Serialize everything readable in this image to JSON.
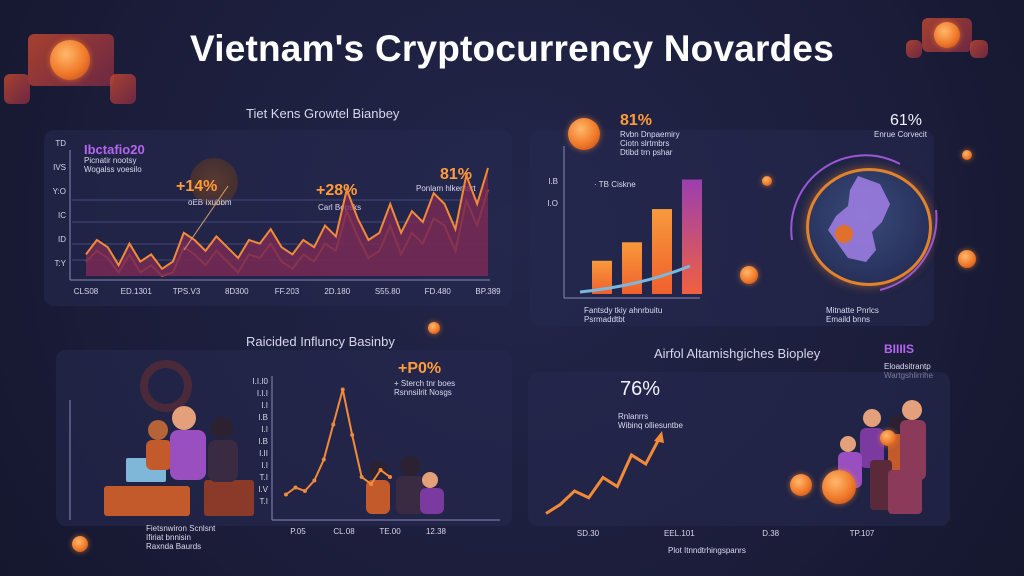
{
  "title": "Vietnam's Cryptocurrency Novardes",
  "colors": {
    "background": "#1b1d3b",
    "accent_orange": "#f28a38",
    "accent_purple": "#9b57d6"
  },
  "panel1": {
    "title": "Tiet Kens Growtel Bianbey",
    "legend_title": "Ibctafio20",
    "legend_sub": "Picnatir nootsy\nWogalss voesilo",
    "callouts": [
      {
        "value": "+14%",
        "label": "oEB Ixubbm"
      },
      {
        "value": "+28%",
        "label": "Carl Bopsks"
      },
      {
        "value": "81%",
        "label": "Ponlam hlkentsrt"
      }
    ]
  },
  "panel2": {
    "legend_value": "81%",
    "legend_text": "Rvbn Dnpaemiry\nCiotn slrtmbrs\nDtibd trn pshar",
    "bar_label": "· TB Ciskne",
    "caption": "Fantsdy tkiy ahnrbuitu\nPsrmaddtbt",
    "map_value": "61%",
    "map_label": "Enrue Corvecit",
    "map_caption": "Mitnatte Pnrlcs\nEmaild bnns"
  },
  "panel3": {
    "title": "Raicided Influncy Basinby",
    "callout_value": "+P0%",
    "callout_text": "+ Sterch tnr boes\nRsnnsilrit Nosgs",
    "caption": "Fietsnwiron Scnlsnt\nIfiriat bnnisin\nRaxnda Baurds"
  },
  "panel4": {
    "title": "Airfol Altamishgiches Biopley",
    "corner_label": "BIIIIS",
    "corner_text": "Eloadsitrantp\nWartgshlirrihe",
    "value": "76%",
    "sub": "Rnlanrrs\nWibinq olliesuntbe",
    "caption": "Plot Itnndtrhingspanrs"
  },
  "chart_data": [
    {
      "type": "line",
      "title": "Tiet Kens Growtel Bianbey",
      "x_tick_labels": [
        "CLS08",
        "ED.1301",
        "TPS.V3",
        "8D300",
        "FF.203",
        "2D.180",
        "S55.80",
        "FD.480",
        "BP.389"
      ],
      "y_tick_labels": [
        "TD",
        "IVS",
        "Y:O",
        "IC",
        "ID",
        "T:Y"
      ],
      "series": [
        {
          "values": [
            6,
            10,
            8,
            3,
            9,
            4,
            6,
            2,
            4,
            12,
            10,
            7,
            11,
            8,
            5,
            10,
            9,
            13,
            8,
            6,
            10,
            8,
            14,
            11,
            24,
            16,
            10,
            12,
            20,
            12,
            18,
            15,
            23,
            20,
            13,
            28,
            20,
            30
          ]
        },
        {
          "values": [
            4,
            7,
            5,
            1,
            6,
            1,
            3,
            0,
            1,
            8,
            6,
            3,
            7,
            4,
            1,
            6,
            5,
            9,
            4,
            2,
            6,
            4,
            9,
            7,
            18,
            11,
            5,
            7,
            14,
            6,
            12,
            9,
            16,
            14,
            7,
            21,
            14,
            24
          ]
        }
      ],
      "ylim": [
        0,
        35
      ]
    },
    {
      "type": "bar",
      "values": [
        18,
        28,
        46,
        62
      ],
      "y_tick_labels": [
        "I.B",
        "I.O"
      ]
    },
    {
      "type": "line",
      "x_tick_labels": [
        "P.05",
        "CL.08",
        "TE.00",
        "12.38"
      ],
      "y_tick_labels": [
        "I.I.I0",
        "I.I.I",
        "I.I",
        "I.B",
        "I.I",
        "I.B",
        "I.II",
        "I.I",
        "T.I",
        "I.V",
        "T.I"
      ],
      "series": [
        {
          "values": [
            5,
            7,
            6,
            9,
            15,
            25,
            35,
            22,
            10,
            8,
            12,
            10
          ]
        }
      ],
      "ylim": [
        0,
        40
      ]
    },
    {
      "type": "line",
      "x_tick_labels": [
        "SD.30",
        "EEL.101",
        "D.38",
        "TP.107"
      ],
      "series": [
        {
          "values": [
            2,
            6,
            12,
            9,
            18,
            14,
            28,
            24,
            36
          ]
        }
      ],
      "ylim": [
        0,
        40
      ]
    }
  ]
}
